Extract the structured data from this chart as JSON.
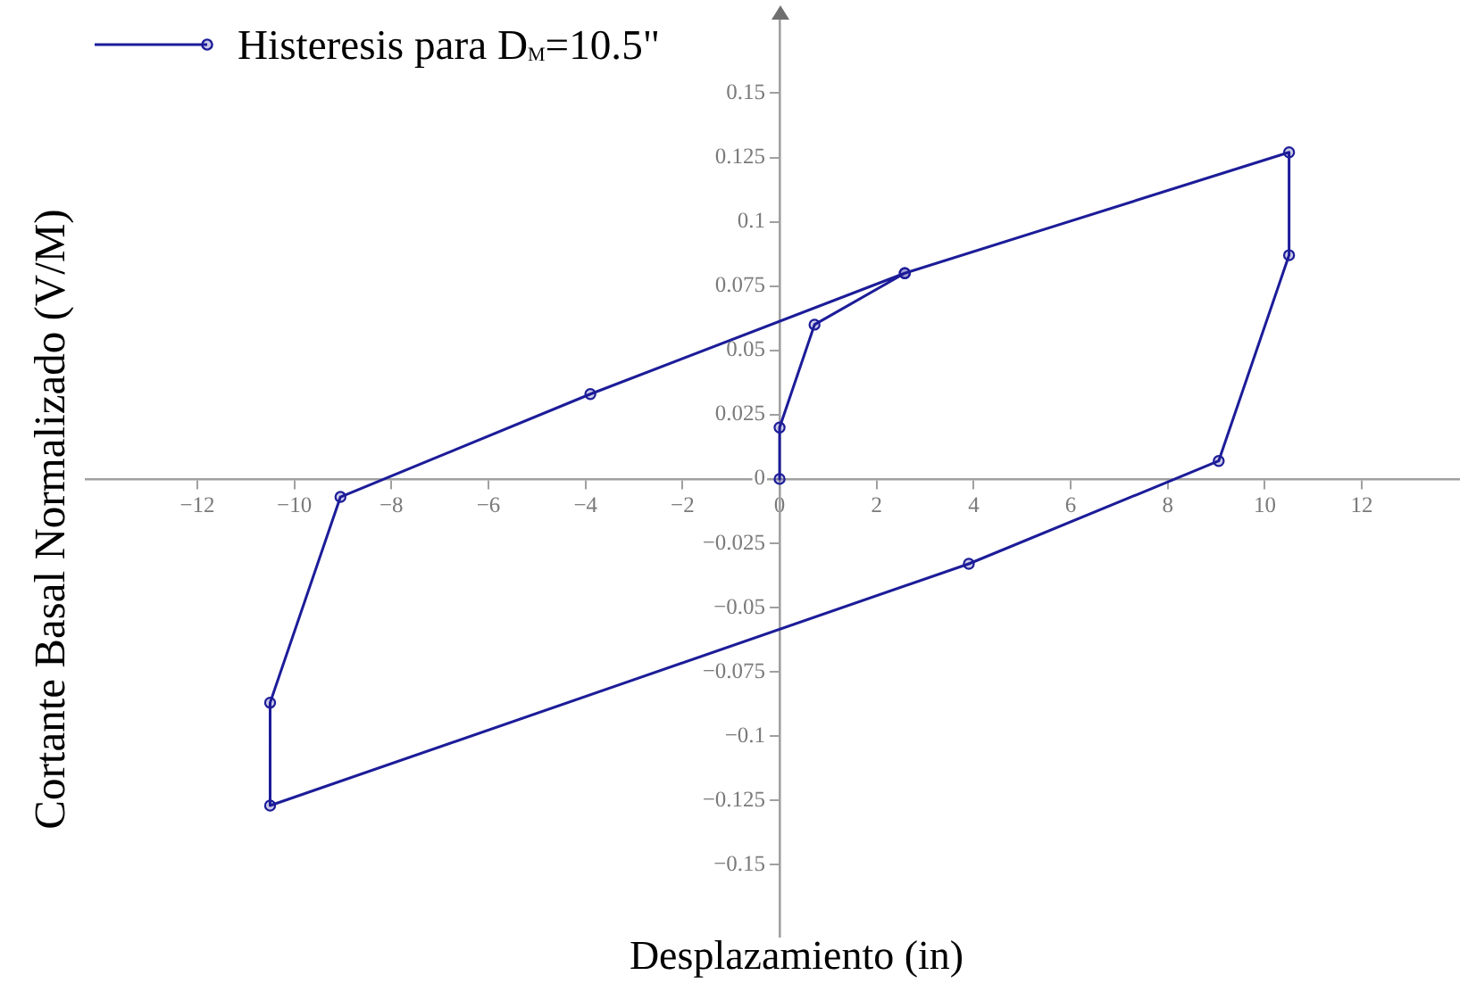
{
  "chart_data": {
    "type": "line",
    "xlabel": "Desplazamiento (in)",
    "ylabel": "Cortante Basal Normalizado (V/M)",
    "series": [
      {
        "name": "Histeresis para D$_{M}$=10.5\"",
        "color": "#1c1c99",
        "x": [
          0,
          0,
          0.72,
          2.58,
          10.5,
          10.5,
          9.05,
          3.9,
          -10.5,
          -10.5,
          -9.05,
          -3.9,
          2.58
        ],
        "values": [
          0,
          0.02,
          0.06,
          0.08,
          0.127,
          0.087,
          0.007,
          -0.033,
          -0.127,
          -0.087,
          -0.007,
          0.033,
          0.08
        ]
      }
    ],
    "xlim": [
      -14.3,
      14
    ],
    "ylim": [
      -0.178,
      0.18
    ],
    "xticks": [
      {
        "value": -12,
        "label": "−12"
      },
      {
        "value": -10,
        "label": "−10"
      },
      {
        "value": -8,
        "label": "−8"
      },
      {
        "value": -6,
        "label": "−6"
      },
      {
        "value": -4,
        "label": "−4"
      },
      {
        "value": -2,
        "label": "−2"
      },
      0,
      2,
      4,
      6,
      8,
      10,
      12
    ],
    "yticks": [
      {
        "value": -0.15,
        "label": "−0.15"
      },
      {
        "value": -0.125,
        "label": "−0.125"
      },
      {
        "value": -0.1,
        "label": "−0.1"
      },
      {
        "value": -0.075,
        "label": "−0.075"
      },
      {
        "value": -0.05,
        "label": "−0.05"
      },
      {
        "value": -0.025,
        "label": "−0.025"
      },
      0,
      0.025,
      0.05,
      0.075,
      0.1,
      0.125,
      0.15
    ],
    "grid": false,
    "legend": "top left",
    "marker": "circle",
    "line_style": "solid"
  }
}
